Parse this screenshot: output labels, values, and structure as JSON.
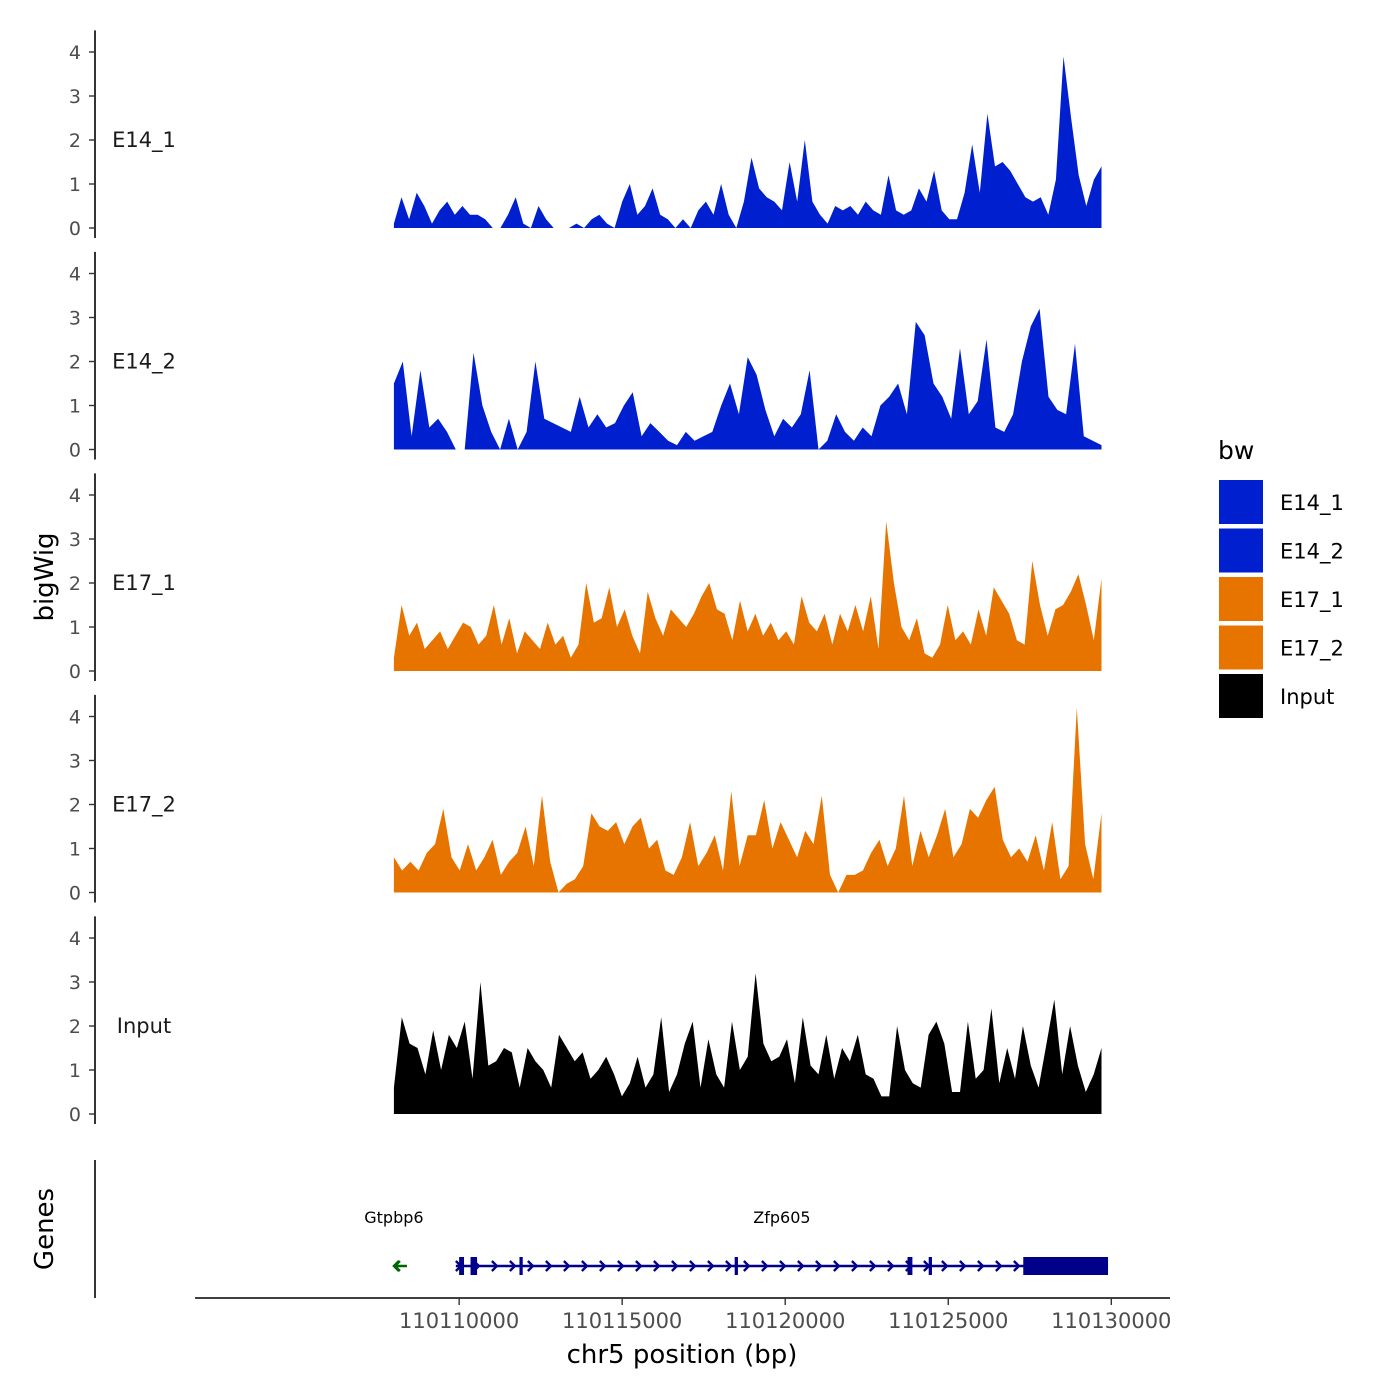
{
  "chart_data": {
    "type": "area",
    "title": "",
    "ylabel": "bigWig",
    "xlabel": "chr5 position (bp)",
    "xlim": [
      110101900,
      110131800
    ],
    "ylim": [
      0,
      4.4
    ],
    "y_ticks": [
      "0",
      "1",
      "2",
      "3",
      "4"
    ],
    "x_ticks": [
      110110000,
      110115000,
      110120000,
      110125000,
      110130000
    ],
    "x_tick_labels": [
      "110110000",
      "110115000",
      "110120000",
      "110125000",
      "110130000"
    ],
    "x_start": 110108000,
    "x_end": 110129700,
    "legend": {
      "title": "bw",
      "position": "right",
      "entries": [
        {
          "label": "E14_1",
          "color": "#0020D0"
        },
        {
          "label": "E14_2",
          "color": "#0020D0"
        },
        {
          "label": "E17_1",
          "color": "#E87400"
        },
        {
          "label": "E17_2",
          "color": "#E87400"
        },
        {
          "label": "Input",
          "color": "#000000"
        }
      ]
    },
    "series": [
      {
        "name": "E14_1",
        "color": "#0020D0",
        "values": [
          0.1,
          0.7,
          0.2,
          0.8,
          0.5,
          0.1,
          0.4,
          0.6,
          0.3,
          0.5,
          0.3,
          0.3,
          0.2,
          0,
          0,
          0.3,
          0.7,
          0.1,
          0,
          0.5,
          0.2,
          0,
          0,
          0,
          0.1,
          0,
          0.2,
          0.3,
          0.1,
          0,
          0.6,
          1.0,
          0.3,
          0.5,
          0.9,
          0.3,
          0.2,
          0,
          0.2,
          0,
          0.4,
          0.6,
          0.3,
          1.0,
          0.3,
          0,
          0.6,
          1.6,
          0.9,
          0.7,
          0.6,
          0.4,
          1.5,
          0.6,
          2.0,
          0.6,
          0.3,
          0.1,
          0.5,
          0.4,
          0.5,
          0.3,
          0.6,
          0.4,
          0.3,
          1.2,
          0.4,
          0.3,
          0.4,
          0.9,
          0.6,
          1.3,
          0.4,
          0.2,
          0.2,
          0.8,
          1.9,
          0.8,
          2.6,
          1.4,
          1.5,
          1.3,
          1.0,
          0.7,
          0.6,
          0.7,
          0.3,
          1.1,
          3.9,
          2.5,
          1.2,
          0.5,
          1.1,
          1.4
        ]
      },
      {
        "name": "E14_2",
        "color": "#0020D0",
        "values": [
          1.5,
          2.0,
          0.3,
          1.8,
          0.5,
          0.7,
          0.4,
          0,
          0,
          2.2,
          1.0,
          0.4,
          0,
          0.7,
          0,
          0.4,
          2.0,
          0.7,
          0.6,
          0.5,
          0.4,
          1.2,
          0.5,
          0.8,
          0.5,
          0.6,
          1.0,
          1.3,
          0.3,
          0.6,
          0.4,
          0.2,
          0.1,
          0.4,
          0.2,
          0.3,
          0.4,
          1.0,
          1.5,
          0.8,
          2.1,
          1.7,
          0.9,
          0.3,
          0.7,
          0.5,
          0.8,
          1.8,
          0,
          0.2,
          0.8,
          0.4,
          0.2,
          0.5,
          0.3,
          1.0,
          1.2,
          1.5,
          0.8,
          2.9,
          2.6,
          1.5,
          1.2,
          0.7,
          2.3,
          0.8,
          1.1,
          2.5,
          0.5,
          0.4,
          0.8,
          2.0,
          2.8,
          3.2,
          1.2,
          0.9,
          0.8,
          2.4,
          0.3,
          0.2,
          0.1
        ]
      },
      {
        "name": "E17_1",
        "color": "#E87400",
        "values": [
          0.3,
          1.5,
          0.8,
          1.1,
          0.5,
          0.7,
          0.9,
          0.5,
          0.8,
          1.1,
          1.0,
          0.6,
          0.8,
          1.5,
          0.6,
          1.2,
          0.4,
          0.9,
          0.7,
          0.5,
          1.1,
          0.6,
          0.8,
          0.3,
          0.6,
          2.0,
          1.1,
          1.2,
          1.9,
          1.0,
          1.4,
          0.8,
          0.4,
          1.8,
          1.2,
          0.8,
          1.4,
          1.2,
          1.0,
          1.3,
          1.7,
          2.0,
          1.4,
          1.3,
          0.7,
          1.6,
          0.9,
          1.3,
          0.8,
          1.1,
          0.7,
          0.9,
          0.6,
          1.7,
          1.1,
          0.9,
          1.3,
          0.6,
          1.3,
          0.9,
          1.5,
          0.9,
          1.7,
          0.5,
          3.4,
          2.0,
          1.0,
          0.7,
          1.2,
          0.4,
          0.3,
          0.6,
          1.5,
          0.7,
          0.9,
          0.6,
          1.4,
          0.8,
          1.9,
          1.6,
          1.3,
          0.7,
          0.6,
          2.5,
          1.5,
          0.8,
          1.4,
          1.5,
          1.8,
          2.2,
          1.5,
          0.7,
          2.1
        ]
      },
      {
        "name": "E17_2",
        "color": "#E87400",
        "values": [
          0.8,
          0.5,
          0.7,
          0.5,
          0.9,
          1.1,
          1.9,
          0.8,
          0.5,
          1.1,
          0.5,
          0.8,
          1.2,
          0.4,
          0.7,
          0.9,
          1.5,
          0.6,
          2.2,
          0.7,
          0,
          0.2,
          0.3,
          0.6,
          1.8,
          1.5,
          1.4,
          1.6,
          1.1,
          1.5,
          1.7,
          1.0,
          1.2,
          0.5,
          0.4,
          0.8,
          1.6,
          0.6,
          0.9,
          1.3,
          0.5,
          2.3,
          0.6,
          1.3,
          1.3,
          2.1,
          1.0,
          1.6,
          1.2,
          0.8,
          1.4,
          1.1,
          2.2,
          0.4,
          0,
          0.4,
          0.4,
          0.5,
          0.9,
          1.2,
          0.6,
          1.0,
          2.2,
          0.6,
          1.4,
          0.8,
          1.3,
          1.9,
          0.8,
          1.1,
          1.9,
          1.7,
          2.1,
          2.4,
          1.2,
          0.8,
          1.0,
          0.7,
          1.3,
          0.5,
          1.6,
          0.3,
          0.6,
          4.2,
          1.1,
          0.3,
          1.8
        ]
      },
      {
        "name": "Input",
        "color": "#000000",
        "values": [
          0.6,
          2.2,
          1.6,
          1.5,
          0.9,
          1.9,
          1.0,
          1.8,
          1.5,
          2.1,
          0.8,
          3.0,
          1.1,
          1.2,
          1.5,
          1.4,
          0.6,
          1.5,
          1.2,
          1.0,
          0.6,
          1.8,
          1.5,
          1.2,
          1.4,
          0.8,
          1.0,
          1.3,
          0.9,
          0.4,
          0.7,
          1.3,
          0.6,
          0.9,
          2.2,
          0.5,
          0.9,
          1.6,
          2.1,
          0.6,
          1.7,
          0.9,
          0.6,
          2.1,
          1.0,
          1.3,
          3.2,
          1.6,
          1.2,
          1.3,
          1.7,
          0.7,
          2.2,
          1.1,
          0.9,
          1.8,
          0.8,
          1.5,
          1.2,
          1.8,
          0.9,
          0.8,
          0.4,
          0.4,
          2.0,
          1.0,
          0.7,
          0.6,
          1.8,
          2.1,
          1.6,
          0.5,
          0.5,
          2.1,
          0.8,
          1.0,
          2.4,
          0.7,
          1.5,
          0.8,
          2.0,
          1.1,
          0.6,
          1.6,
          2.6,
          0.9,
          2.0,
          1.1,
          0.5,
          0.9,
          1.5
        ]
      }
    ],
    "gene_track": {
      "ylabel": "Genes",
      "genes": [
        {
          "name": "Gtpbp6",
          "start": 110108000,
          "end": 110108400,
          "strand": "-",
          "color": "#006400",
          "exons": []
        },
        {
          "name": "Zfp605",
          "start": 110109900,
          "end": 110129900,
          "strand": "+",
          "color": "#00008B",
          "exons": [
            [
              110110000,
              110110150
            ],
            [
              110110350,
              110110550
            ],
            [
              110111850,
              110111950
            ],
            [
              110118450,
              110118550
            ],
            [
              110123750,
              110123900
            ],
            [
              110124400,
              110124500
            ],
            [
              110127300,
              110129900
            ]
          ]
        }
      ]
    }
  }
}
